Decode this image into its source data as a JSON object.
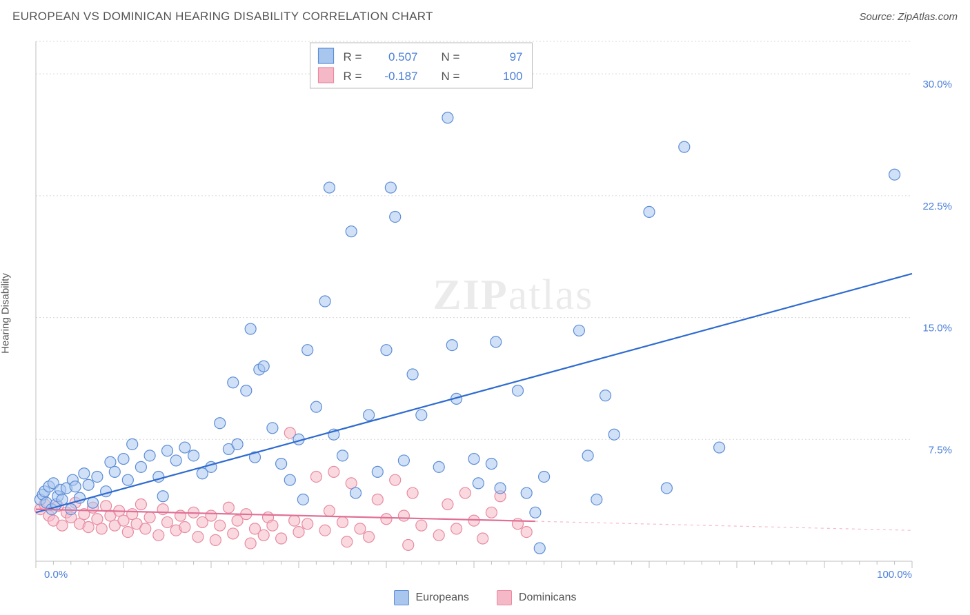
{
  "title": "EUROPEAN VS DOMINICAN HEARING DISABILITY CORRELATION CHART",
  "source": "Source: ZipAtlas.com",
  "ylabel": "Hearing Disability",
  "watermark": {
    "part1": "ZIP",
    "part2": "atlas"
  },
  "chart": {
    "type": "scatter",
    "background_color": "#ffffff",
    "grid_color": "#d8d8d8",
    "axis_color": "#bfbfbf",
    "tick_color": "#bfbfbf",
    "text_color": "#555555",
    "value_color": "#4a7fd8",
    "xlim": [
      0,
      100
    ],
    "ylim": [
      0,
      32
    ],
    "x_major_ticks": [
      0,
      10,
      20,
      30,
      40,
      50,
      60,
      70,
      80,
      90,
      100
    ],
    "x_minor_step": 2,
    "y_gridlines": [
      7.5,
      15.0,
      22.5,
      30.0
    ],
    "y_tick_labels": [
      "7.5%",
      "15.0%",
      "22.5%",
      "30.0%"
    ],
    "x_left_label": "0.0%",
    "x_right_label": "100.0%",
    "marker_radius": 8
  },
  "series": [
    {
      "name": "Europeans",
      "fill": "#a9c7ee",
      "stroke": "#5c8dd6",
      "trend_color": "#2e6bd0",
      "R": "0.507",
      "N": "97",
      "trend": {
        "x1": 0,
        "y1": 3.0,
        "x2": 100,
        "y2": 17.7,
        "solid_to_x": 100
      },
      "points": [
        [
          0.5,
          3.8
        ],
        [
          0.8,
          4.1
        ],
        [
          1.0,
          4.3
        ],
        [
          1.2,
          3.6
        ],
        [
          1.5,
          4.6
        ],
        [
          1.8,
          3.2
        ],
        [
          2.0,
          4.8
        ],
        [
          2.3,
          3.5
        ],
        [
          2.5,
          4.0
        ],
        [
          2.8,
          4.4
        ],
        [
          3.0,
          3.8
        ],
        [
          3.5,
          4.5
        ],
        [
          4.0,
          3.2
        ],
        [
          4.2,
          5.0
        ],
        [
          4.5,
          4.6
        ],
        [
          5.0,
          3.9
        ],
        [
          5.5,
          5.4
        ],
        [
          6,
          4.7
        ],
        [
          6.5,
          3.6
        ],
        [
          7,
          5.2
        ],
        [
          8,
          4.3
        ],
        [
          8.5,
          6.1
        ],
        [
          9,
          5.5
        ],
        [
          10,
          6.3
        ],
        [
          10.5,
          5.0
        ],
        [
          11,
          7.2
        ],
        [
          12,
          5.8
        ],
        [
          13,
          6.5
        ],
        [
          14,
          5.2
        ],
        [
          14.5,
          4.0
        ],
        [
          15,
          6.8
        ],
        [
          16,
          6.2
        ],
        [
          17,
          7.0
        ],
        [
          18,
          6.5
        ],
        [
          19,
          5.4
        ],
        [
          20,
          5.8
        ],
        [
          21,
          8.5
        ],
        [
          22,
          6.9
        ],
        [
          22.5,
          11.0
        ],
        [
          23,
          7.2
        ],
        [
          24,
          10.5
        ],
        [
          24.5,
          14.3
        ],
        [
          25,
          6.4
        ],
        [
          25.5,
          11.8
        ],
        [
          26,
          12.0
        ],
        [
          27,
          8.2
        ],
        [
          28,
          6.0
        ],
        [
          29,
          5.0
        ],
        [
          30,
          7.5
        ],
        [
          30.5,
          3.8
        ],
        [
          31,
          13.0
        ],
        [
          32,
          9.5
        ],
        [
          33,
          16.0
        ],
        [
          33.5,
          23.0
        ],
        [
          34,
          7.8
        ],
        [
          35,
          6.5
        ],
        [
          36,
          20.3
        ],
        [
          36.5,
          4.2
        ],
        [
          38,
          9.0
        ],
        [
          39,
          5.5
        ],
        [
          40,
          13.0
        ],
        [
          40.5,
          23.0
        ],
        [
          41,
          21.2
        ],
        [
          42,
          6.2
        ],
        [
          43,
          11.5
        ],
        [
          44,
          9.0
        ],
        [
          46,
          5.8
        ],
        [
          47,
          27.3
        ],
        [
          47.5,
          13.3
        ],
        [
          48,
          10.0
        ],
        [
          50,
          6.3
        ],
        [
          50.5,
          4.8
        ],
        [
          52,
          6.0
        ],
        [
          52.5,
          13.5
        ],
        [
          53,
          4.5
        ],
        [
          55,
          10.5
        ],
        [
          56,
          4.2
        ],
        [
          57,
          3.0
        ],
        [
          57.5,
          0.8
        ],
        [
          58,
          5.2
        ],
        [
          62,
          14.2
        ],
        [
          63,
          6.5
        ],
        [
          64,
          3.8
        ],
        [
          65,
          10.2
        ],
        [
          66,
          7.8
        ],
        [
          70,
          21.5
        ],
        [
          72,
          4.5
        ],
        [
          74,
          25.5
        ],
        [
          78,
          7.0
        ],
        [
          98,
          23.8
        ]
      ]
    },
    {
      "name": "Dominicans",
      "fill": "#f5b8c7",
      "stroke": "#e88aa0",
      "trend_color": "#e17096",
      "R": "-0.187",
      "N": "100",
      "trend": {
        "x1": 0,
        "y1": 3.2,
        "x2": 100,
        "y2": 1.9,
        "solid_to_x": 57
      },
      "points": [
        [
          0.5,
          3.2
        ],
        [
          1,
          3.5
        ],
        [
          1.5,
          2.8
        ],
        [
          2,
          2.5
        ],
        [
          2.5,
          3.4
        ],
        [
          3,
          2.2
        ],
        [
          3.5,
          3.0
        ],
        [
          4,
          2.7
        ],
        [
          4.5,
          3.6
        ],
        [
          5,
          2.3
        ],
        [
          5.5,
          2.9
        ],
        [
          6,
          2.1
        ],
        [
          6.5,
          3.3
        ],
        [
          7,
          2.6
        ],
        [
          7.5,
          2.0
        ],
        [
          8,
          3.4
        ],
        [
          8.5,
          2.8
        ],
        [
          9,
          2.2
        ],
        [
          9.5,
          3.1
        ],
        [
          10,
          2.5
        ],
        [
          10.5,
          1.8
        ],
        [
          11,
          2.9
        ],
        [
          11.5,
          2.3
        ],
        [
          12,
          3.5
        ],
        [
          12.5,
          2.0
        ],
        [
          13,
          2.7
        ],
        [
          14,
          1.6
        ],
        [
          14.5,
          3.2
        ],
        [
          15,
          2.4
        ],
        [
          16,
          1.9
        ],
        [
          16.5,
          2.8
        ],
        [
          17,
          2.1
        ],
        [
          18,
          3.0
        ],
        [
          18.5,
          1.5
        ],
        [
          19,
          2.4
        ],
        [
          20,
          2.8
        ],
        [
          20.5,
          1.3
        ],
        [
          21,
          2.2
        ],
        [
          22,
          3.3
        ],
        [
          22.5,
          1.7
        ],
        [
          23,
          2.5
        ],
        [
          24,
          2.9
        ],
        [
          24.5,
          1.1
        ],
        [
          25,
          2.0
        ],
        [
          26,
          1.6
        ],
        [
          26.5,
          2.7
        ],
        [
          27,
          2.2
        ],
        [
          28,
          1.4
        ],
        [
          29,
          7.9
        ],
        [
          29.5,
          2.5
        ],
        [
          30,
          1.8
        ],
        [
          31,
          2.3
        ],
        [
          32,
          5.2
        ],
        [
          33,
          1.9
        ],
        [
          33.5,
          3.1
        ],
        [
          34,
          5.5
        ],
        [
          35,
          2.4
        ],
        [
          35.5,
          1.2
        ],
        [
          36,
          4.8
        ],
        [
          37,
          2.0
        ],
        [
          38,
          1.5
        ],
        [
          39,
          3.8
        ],
        [
          40,
          2.6
        ],
        [
          41,
          5.0
        ],
        [
          42,
          2.8
        ],
        [
          42.5,
          1.0
        ],
        [
          43,
          4.2
        ],
        [
          44,
          2.2
        ],
        [
          46,
          1.6
        ],
        [
          47,
          3.5
        ],
        [
          48,
          2.0
        ],
        [
          49,
          4.2
        ],
        [
          50,
          2.5
        ],
        [
          51,
          1.4
        ],
        [
          52,
          3.0
        ],
        [
          53,
          4.0
        ],
        [
          55,
          2.3
        ],
        [
          56,
          1.8
        ]
      ]
    }
  ],
  "legend": {
    "items": [
      {
        "label": "Europeans",
        "fill": "#a9c7ee",
        "stroke": "#5c8dd6"
      },
      {
        "label": "Dominicans",
        "fill": "#f5b8c7",
        "stroke": "#e88aa0"
      }
    ]
  },
  "stats_box": {
    "r_label": "R =",
    "n_label": "N ="
  }
}
